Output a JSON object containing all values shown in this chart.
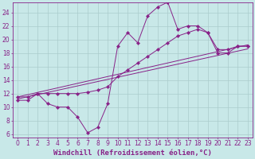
{
  "bg_color": "#c8e8e8",
  "line_color": "#882288",
  "grid_color": "#aacccc",
  "xlabel": "Windchill (Refroidissement éolien,°C)",
  "xlabel_fontsize": 6.5,
  "tick_fontsize": 5.5,
  "xlim": [
    -0.5,
    23.5
  ],
  "ylim": [
    5.5,
    25.5
  ],
  "yticks": [
    6,
    8,
    10,
    12,
    14,
    16,
    18,
    20,
    22,
    24
  ],
  "xticks": [
    0,
    1,
    2,
    3,
    4,
    5,
    6,
    7,
    8,
    9,
    10,
    11,
    12,
    13,
    14,
    15,
    16,
    17,
    18,
    19,
    20,
    21,
    22,
    23
  ],
  "series1_x": [
    0,
    1,
    2,
    3,
    4,
    5,
    6,
    7,
    8,
    9,
    10,
    11,
    12,
    13,
    14,
    15,
    16,
    17,
    18,
    19,
    20,
    21,
    22,
    23
  ],
  "series1_y": [
    11,
    11,
    12,
    10.5,
    10,
    10,
    8.5,
    6.2,
    7,
    10.5,
    19,
    21,
    19.5,
    23.5,
    24.8,
    25.5,
    21.5,
    22,
    22,
    21,
    18,
    18,
    19,
    19
  ],
  "series2_x": [
    0,
    1,
    2,
    3,
    4,
    5,
    6,
    7,
    8,
    9,
    10,
    11,
    12,
    13,
    14,
    15,
    16,
    17,
    18,
    19,
    20,
    21,
    22,
    23
  ],
  "series2_y": [
    11.5,
    11.5,
    12,
    12,
    12,
    12,
    12,
    12.2,
    12.5,
    13,
    14.5,
    15.5,
    16.5,
    17.5,
    18.5,
    19.5,
    20.5,
    21,
    21.5,
    21,
    18.5,
    18.5,
    19,
    19
  ],
  "series3_x": [
    0,
    23
  ],
  "series3_y": [
    11.2,
    18.6
  ],
  "series4_x": [
    0,
    23
  ],
  "series4_y": [
    11.5,
    19.2
  ]
}
